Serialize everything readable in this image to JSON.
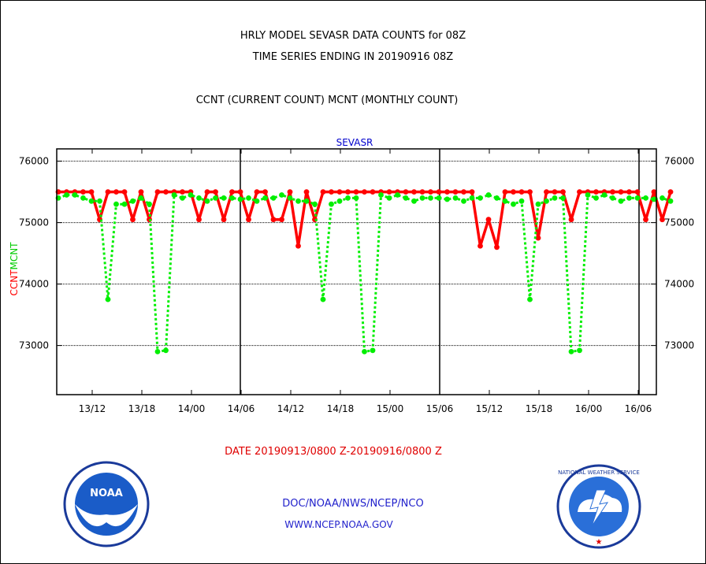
{
  "header": {
    "title_line1": "HRLY MODEL SEVASR DATA COUNTS for 08Z",
    "title_line2": "TIME SERIES ENDING IN 20190916 08Z",
    "title_line3": "CCNT (CURRENT COUNT) MCNT (MONTHLY COUNT)"
  },
  "footer": {
    "date_range": "DATE 20190913/0800 Z-20190916/0800 Z",
    "org_line": "DOC/NOAA/NWS/NCEP/NCO",
    "url_line": "WWW.NCEP.NOAA.GOV"
  },
  "logos": {
    "noaa": "NOAA",
    "nws": "NATIONAL WEATHER SERVICE"
  },
  "chart_data": {
    "type": "line",
    "title": "SEVASR",
    "ylabel_ccnt": "CCNT",
    "ylabel_mcnt": "MCNT",
    "ylim": [
      72200,
      76200
    ],
    "yticks": [
      73000,
      74000,
      75000,
      76000
    ],
    "ytick_labels": [
      "73000",
      "74000",
      "75000",
      "76000"
    ],
    "xtick_labels": [
      "13/12",
      "13/18",
      "14/00",
      "14/06",
      "14/12",
      "14/18",
      "15/00",
      "15/06",
      "15/12",
      "15/18",
      "16/00",
      "16/06"
    ],
    "grid": true,
    "colors": {
      "ccnt": "#ff0000",
      "mcnt": "#00ee00",
      "axis": "#000000",
      "title": "#0000cc"
    },
    "series": [
      {
        "key": "ccnt",
        "values": [
          75500,
          75500,
          75500,
          75500,
          75500,
          75050,
          75500,
          75500,
          75500,
          75050,
          75500,
          75050,
          75500,
          75500,
          75500,
          75500,
          75500,
          75050,
          75500,
          75500,
          75050,
          75500,
          75500,
          75050,
          75500,
          75500,
          75050,
          75050,
          75500,
          74620,
          75500,
          75050,
          75500,
          75500,
          75500,
          75500,
          75500,
          75500,
          75500,
          75500,
          75500,
          75500,
          75500,
          75500,
          75500,
          75500,
          75500,
          75500,
          75500,
          75500,
          75500,
          74620,
          75050,
          74600,
          75500,
          75500,
          75500,
          75500,
          74750,
          75500,
          75500,
          75500,
          75050,
          75500,
          75500,
          75500,
          75500,
          75500,
          75500,
          75500,
          75500,
          75050,
          75500,
          75050,
          75500
        ]
      },
      {
        "key": "mcnt",
        "values": [
          75400,
          75450,
          75450,
          75400,
          75350,
          75350,
          73750,
          75300,
          75300,
          75350,
          75400,
          75300,
          72900,
          72920,
          75450,
          75400,
          75450,
          75400,
          75350,
          75400,
          75400,
          75400,
          75380,
          75400,
          75350,
          75400,
          75400,
          75450,
          75400,
          75350,
          75350,
          75300,
          73750,
          75300,
          75350,
          75400,
          75400,
          72900,
          72920,
          75450,
          75400,
          75450,
          75400,
          75350,
          75400,
          75400,
          75400,
          75380,
          75400,
          75350,
          75400,
          75400,
          75450,
          75400,
          75350,
          75300,
          75350,
          73750,
          75300,
          75350,
          75400,
          75400,
          72900,
          72920,
          75450,
          75400,
          75450,
          75400,
          75350,
          75400,
          75400,
          75400,
          75380,
          75400,
          75350
        ]
      }
    ]
  }
}
